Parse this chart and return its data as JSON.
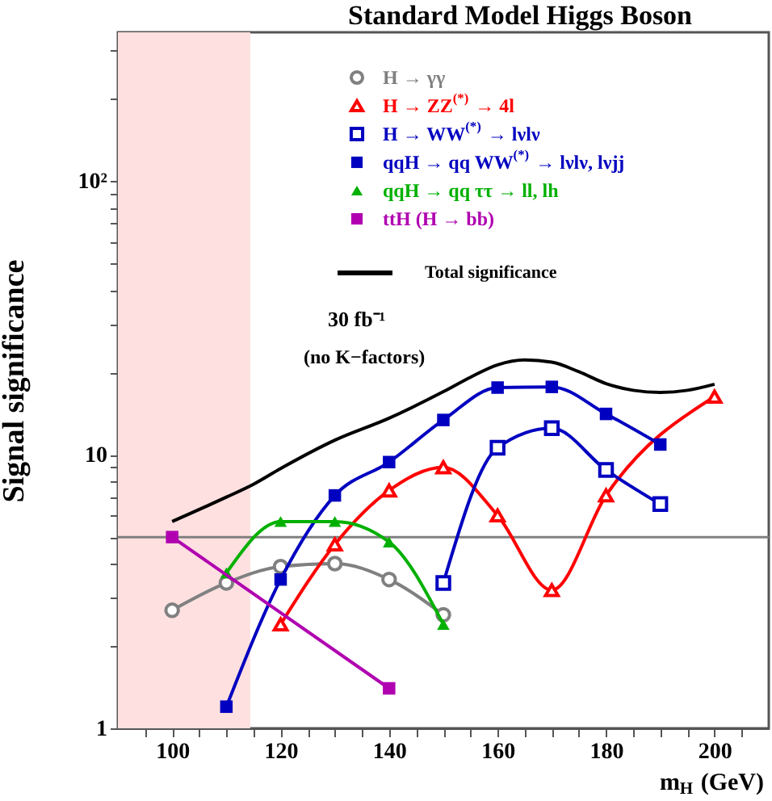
{
  "chart_data": {
    "type": "line",
    "title": "Standard Model Higgs Boson",
    "xlabel": "m$_{H}$ (GeV)",
    "ylabel": "Signal significance",
    "annotations": [
      "30 fb⁻¹",
      "(no K−factors)"
    ],
    "log": "y",
    "grid": false,
    "legend": "top right",
    "line_style": "solid",
    "xlim": [
      90,
      210
    ],
    "xticks": [
      {
        "value": 95,
        "label": null
      },
      100,
      {
        "value": 105,
        "label": null
      },
      {
        "value": 110,
        "label": null
      },
      {
        "value": 115,
        "label": null
      },
      120,
      {
        "value": 125,
        "label": null
      },
      {
        "value": 130,
        "label": null
      },
      {
        "value": 135,
        "label": null
      },
      140,
      {
        "value": 145,
        "label": null
      },
      {
        "value": 150,
        "label": null
      },
      {
        "value": 155,
        "label": null
      },
      160,
      {
        "value": 165,
        "label": null
      },
      {
        "value": 170,
        "label": null
      },
      {
        "value": 175,
        "label": null
      },
      180,
      {
        "value": 185,
        "label": null
      },
      {
        "value": 190,
        "label": null
      },
      {
        "value": 195,
        "label": null
      },
      200,
      {
        "value": 205,
        "label": null
      }
    ],
    "ylim": [
      1,
      350
    ],
    "yticks": [
      1,
      {
        "value": 2,
        "label": null
      },
      {
        "value": 3,
        "label": null
      },
      {
        "value": 4,
        "label": null
      },
      {
        "value": 5,
        "label": null
      },
      {
        "value": 6,
        "label": null
      },
      {
        "value": 7,
        "label": null
      },
      {
        "value": 8,
        "label": null
      },
      {
        "value": 9,
        "label": null
      },
      10,
      {
        "value": 20,
        "label": null
      },
      {
        "value": 30,
        "label": null
      },
      {
        "value": 40,
        "label": null
      },
      {
        "value": 50,
        "label": null
      },
      {
        "value": 60,
        "label": null
      },
      {
        "value": 70,
        "label": null
      },
      {
        "value": 80,
        "label": null
      },
      {
        "value": 90,
        "label": null
      },
      {
        "value": 100,
        "label": "10²"
      },
      {
        "value": 200,
        "label": null
      },
      {
        "value": 300,
        "label": null
      }
    ],
    "ref_lines": [
      {
        "axis": "y",
        "value": 5,
        "label": null,
        "color": "#808080"
      }
    ],
    "bands": [
      {
        "axis": "x",
        "from": 90,
        "to": 114.4,
        "label": null,
        "color": "#ffe0e0"
      }
    ],
    "series": [
      {
        "name": "H → γγ",
        "color": "#808080",
        "marker": "circle",
        "x": [
          100,
          110,
          120,
          130,
          140,
          150
        ],
        "values": [
          2.7,
          3.4,
          3.9,
          4.0,
          3.5,
          2.6
        ]
      },
      {
        "name": "H → ZZ$^{(*)}$ → 4l",
        "color": "#ff0000",
        "marker": "triangle",
        "x": [
          120,
          130,
          140,
          150,
          160,
          170,
          180,
          200
        ],
        "values": [
          2.4,
          4.7,
          7.4,
          9.0,
          6.0,
          3.2,
          7.1,
          16.3
        ]
      },
      {
        "name": "H → WW$^{(*)}$ → lνlν",
        "color": "#0000c0",
        "marker": "square",
        "x": [
          150,
          160,
          170,
          180,
          190
        ],
        "values": [
          3.4,
          10.6,
          12.5,
          8.8,
          6.6
        ]
      },
      {
        "name": "qqH → qq WW$^{(*)}$ → lνlν, lνjj",
        "color": "#0000c0",
        "marker": "square",
        "x": [
          110,
          120,
          130,
          140,
          150,
          160,
          170,
          180,
          190
        ],
        "values": [
          1.2,
          3.5,
          7.1,
          9.4,
          13.4,
          17.6,
          17.7,
          14.1,
          10.9
        ]
      },
      {
        "name": "qqH → qq ττ → ll, lh",
        "color": "#00b000",
        "marker": "triangle",
        "x": [
          110,
          120,
          130,
          140,
          150
        ],
        "values": [
          3.7,
          5.7,
          5.7,
          4.8,
          2.4
        ]
      },
      {
        "name": "ttH (H → bb)",
        "color": "#b000b0",
        "marker": "square",
        "x": [
          100,
          140
        ],
        "values": [
          5.0,
          1.4
        ]
      },
      {
        "name": "Total significance",
        "color": "#000000",
        "marker": "none",
        "x": [
          100,
          110,
          115,
          120,
          130,
          140,
          150,
          155,
          160,
          165,
          170,
          175,
          180,
          185,
          190,
          195,
          200
        ],
        "values": [
          5.7,
          7.0,
          7.8,
          8.9,
          11.3,
          13.6,
          17.0,
          19.2,
          21.3,
          22.2,
          21.8,
          20.1,
          18.2,
          17.2,
          16.9,
          17.2,
          18.1
        ]
      }
    ]
  }
}
